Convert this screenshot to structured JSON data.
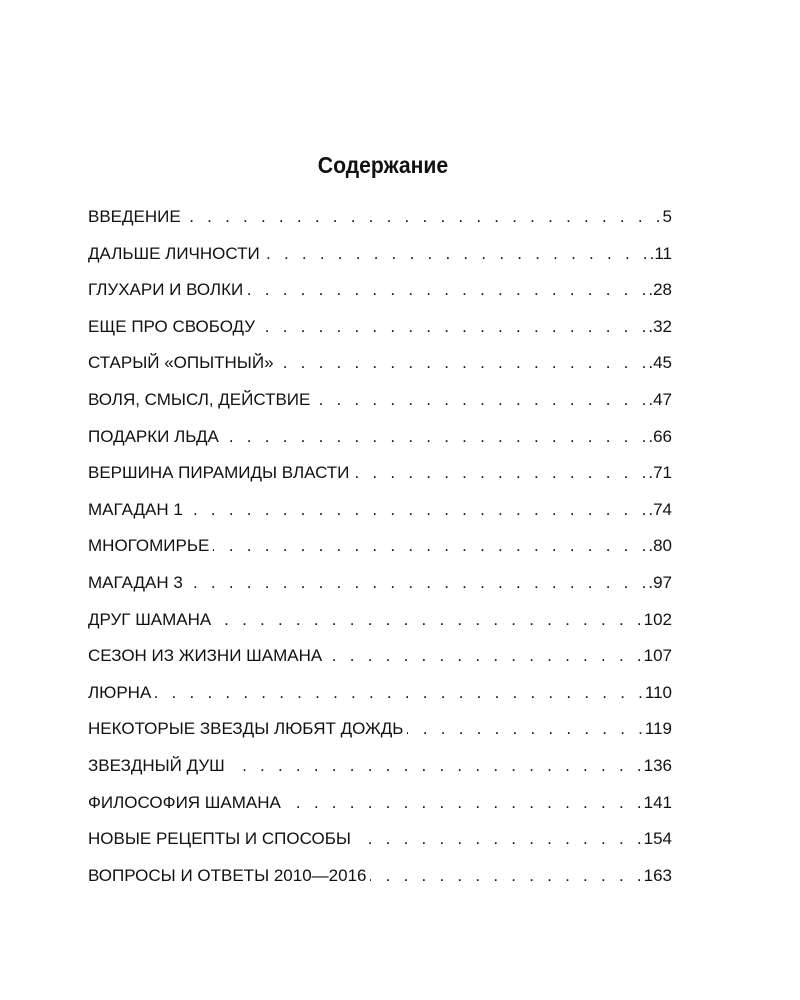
{
  "title": "Содержание",
  "entries": [
    {
      "label": "ВВЕДЕНИЕ",
      "page": "5"
    },
    {
      "label": "ДАЛЬШЕ ЛИЧНОСТИ",
      "page": ".11"
    },
    {
      "label": "ГЛУХАРИ И ВОЛКИ",
      "page": ".28"
    },
    {
      "label": "ЕЩЕ ПРО СВОБОДУ",
      "page": ".32"
    },
    {
      "label": "СТАРЫЙ «ОПЫТНЫЙ»",
      "page": ".45"
    },
    {
      "label": "ВОЛЯ, СМЫСЛ, ДЕЙСТВИЕ",
      "page": ".47"
    },
    {
      "label": "ПОДАРКИ ЛЬДА",
      "page": ".66"
    },
    {
      "label": "ВЕРШИНА ПИРАМИДЫ ВЛАСТИ",
      "page": ".71"
    },
    {
      "label": "МАГАДАН 1",
      "page": ".74"
    },
    {
      "label": "МНОГОМИРЬЕ",
      "page": ".80"
    },
    {
      "label": "МАГАДАН 3",
      "page": ".97"
    },
    {
      "label": "ДРУГ ШАМАНА",
      "page": "102"
    },
    {
      "label": "СЕЗОН ИЗ ЖИЗНИ ШАМАНА",
      "page": "107"
    },
    {
      "label": "ЛЮРНА",
      "page": "110"
    },
    {
      "label": "НЕКОТОРЫЕ ЗВЕЗДЫ ЛЮБЯТ ДОЖДЬ",
      "page": "119"
    },
    {
      "label": "ЗВЕЗДНЫЙ ДУШ",
      "page": "136"
    },
    {
      "label": "ФИЛОСОФИЯ ШАМАНА",
      "page": "141"
    },
    {
      "label": "НОВЫЕ РЕЦЕПТЫ И СПОСОБЫ",
      "page": "154"
    },
    {
      "label": "ВОПРОСЫ И ОТВЕТЫ 2010—2016",
      "page": "163"
    }
  ]
}
